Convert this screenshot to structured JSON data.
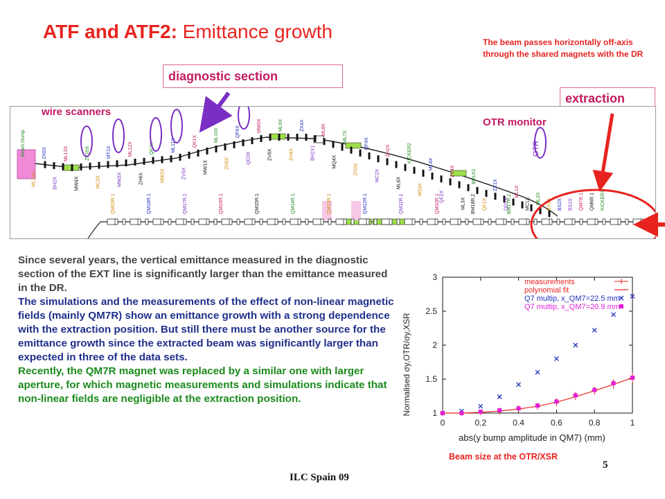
{
  "slide": {
    "title_bold": "ATF and ATF2:",
    "title_rest": " Emittance growth",
    "note": "The beam passes horizontally off-axis through the shared magnets with the DR",
    "diagnostic_label": "diagnostic section",
    "extraction_label": "extraction",
    "wire_scanners_label": "wire scanners",
    "otr_monitor_label": "OTR monitor",
    "paragraph_1": "Since several years, the vertical emittance measured in the diagnostic section of the EXT line is significantly larger than the emittance measured in the DR.",
    "paragraph_2": "The simulations and the measurements of the effect of non-linear magnetic fields (mainly QM7R)  show an emittance growth with a strong dependence with the extraction position. But still there must be another source for the emittance growth since the extracted beam was significantly larger than expected in three of the data sets.",
    "paragraph_3": "Recently, the QM7R magnet was replaced by a similar one with larger aperture, for which magnetic measurements and simulations indicate that non-linear fields are negligible at the extraction position.",
    "caption": "Beam size at the OTR/XSR",
    "footer": "ILC Spain 09",
    "page_number": "5",
    "colors": {
      "title": "#e8231f",
      "box_text": "#c21a62",
      "blue_text": "#1f2f8a",
      "green_text": "#1b8a1b",
      "gray_text": "#444444"
    }
  },
  "lattice": {
    "labels": [
      "Beam Dump",
      "ML14X",
      "ZX6X",
      "BH2X",
      "ML13X",
      "MW4X",
      "ZV10X",
      "MC3X",
      "MT1X",
      "MW3X",
      "ML12X",
      "ZH6X",
      "QF7X",
      "MW2X",
      "ML11X",
      "ZV9X",
      "QK1X",
      "MW1X",
      "ML10X",
      "ZH5X",
      "QF6X",
      "QD3X",
      "MW0X",
      "ZV8X",
      "ML9X",
      "ZH4X",
      "ZX4X",
      "BH2X1",
      "ML8X",
      "MQ4X",
      "ML7X",
      "ZH3X",
      "QF4X",
      "MC2X",
      "ZH2X",
      "ML6X",
      "KICKER2",
      "MS3X",
      "ML4X",
      "QF2X",
      "ZV4X",
      "ML3X",
      "BH1X2",
      "QF1X",
      "ZX1X",
      "QD1X",
      "ML1X",
      "MC1X",
      "ML2X",
      "BS3X",
      "BS2X",
      "BS1X",
      "QM7R.1",
      "QM6R.1",
      "KICKER1",
      "QM19R.1",
      "QM18R.1",
      "QM17R.1",
      "QM16R.1",
      "QM15R.1",
      "QM14R.1",
      "QM13R.1",
      "QM12R.1",
      "QM11R.1",
      "QM10R.1",
      "BM18R.2",
      "BM17R.2"
    ],
    "otr_tag": "OTR"
  },
  "chart_data": {
    "type": "scatter",
    "title": "",
    "xlabel": "abs(y bump amplitude in QM7) (mm)",
    "ylabel": "Normalised σy,OTR/σy,XSR",
    "xlim": [
      0,
      1
    ],
    "ylim": [
      1,
      3
    ],
    "xticks": [
      "0",
      "0.2",
      "0.4",
      "0.6",
      "0.8",
      "1"
    ],
    "yticks": [
      "1",
      "1.5",
      "2",
      "2.5",
      "3"
    ],
    "legend_position": "top-right",
    "legend_entries": [
      {
        "label": "measurements",
        "color": "#e8231f",
        "marker": "+"
      },
      {
        "label": "polynomial fit",
        "color": "#e8231f",
        "marker": "line"
      },
      {
        "label": "Q7 multip, x_QM7=22.5 mm",
        "color": "#1f2fb8",
        "marker": "x"
      },
      {
        "label": "Q7 multip, x_QM7=20.9 mm",
        "color": "#e020d8",
        "marker": "square"
      }
    ],
    "series": [
      {
        "name": "measurements",
        "x": [
          0.0,
          0.1,
          0.2,
          0.3,
          0.4,
          0.5,
          0.6,
          0.7,
          0.8,
          0.9,
          1.0
        ],
        "y": [
          1.0,
          1.0,
          1.01,
          1.03,
          1.06,
          1.1,
          1.16,
          1.25,
          1.33,
          1.43,
          1.52
        ],
        "errors": [
          0.04,
          0.04,
          0.04,
          0.05,
          0.05,
          0.05,
          0.06,
          0.06,
          0.06,
          0.07,
          0.07
        ]
      },
      {
        "name": "polynomial fit",
        "x": [
          0.0,
          0.1,
          0.2,
          0.3,
          0.4,
          0.5,
          0.6,
          0.7,
          0.8,
          0.9,
          1.0
        ],
        "y": [
          1.0,
          1.0,
          1.01,
          1.03,
          1.06,
          1.1,
          1.16,
          1.24,
          1.33,
          1.42,
          1.52
        ]
      },
      {
        "name": "Q7 multip, x_QM7=22.5 mm",
        "x": [
          0.0,
          0.1,
          0.2,
          0.3,
          0.4,
          0.5,
          0.6,
          0.7,
          0.8,
          0.9,
          1.0
        ],
        "y": [
          1.0,
          1.03,
          1.1,
          1.24,
          1.42,
          1.6,
          1.8,
          2.0,
          2.22,
          2.45,
          2.72
        ]
      },
      {
        "name": "Q7 multip, x_QM7=20.9 mm",
        "x": [
          0.0,
          0.1,
          0.2,
          0.3,
          0.4,
          0.5,
          0.6,
          0.7,
          0.8,
          0.9,
          1.0
        ],
        "y": [
          1.0,
          1.0,
          1.02,
          1.04,
          1.07,
          1.11,
          1.17,
          1.26,
          1.34,
          1.44,
          1.52
        ]
      }
    ]
  }
}
